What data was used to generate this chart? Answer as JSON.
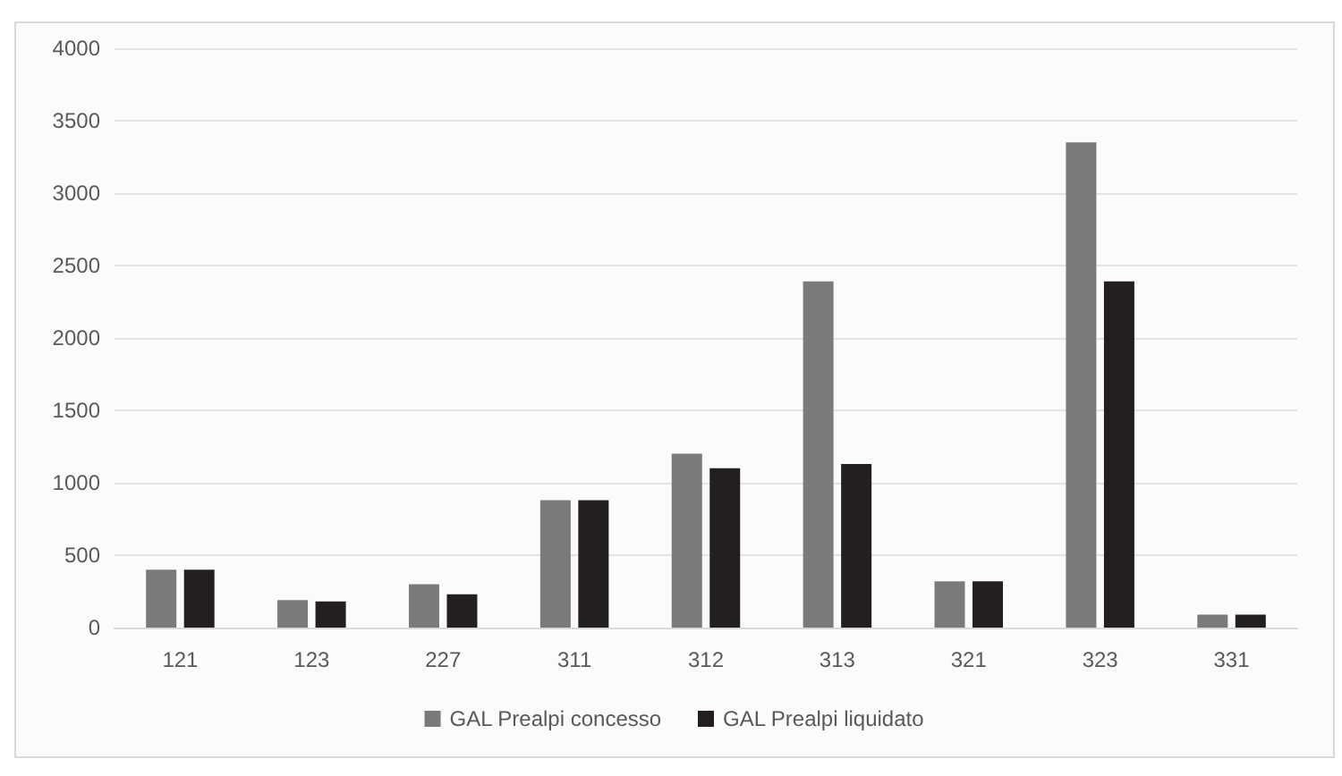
{
  "chart_data": {
    "type": "bar",
    "categories": [
      "121",
      "123",
      "227",
      "311",
      "312",
      "313",
      "321",
      "323",
      "331"
    ],
    "series": [
      {
        "name": "GAL Prealpi concesso",
        "color": "#7a7a7a",
        "values": [
          400,
          190,
          300,
          880,
          1200,
          2390,
          320,
          3350,
          90
        ]
      },
      {
        "name": "GAL Prealpi liquidato",
        "color": "#231f20",
        "values": [
          400,
          180,
          230,
          880,
          1100,
          1130,
          320,
          2390,
          90
        ]
      }
    ],
    "ylim": [
      0,
      4000
    ],
    "yticks": [
      0,
      500,
      1000,
      1500,
      2000,
      2500,
      3000,
      3500,
      4000
    ],
    "grid": "y",
    "legend": "bottom"
  }
}
